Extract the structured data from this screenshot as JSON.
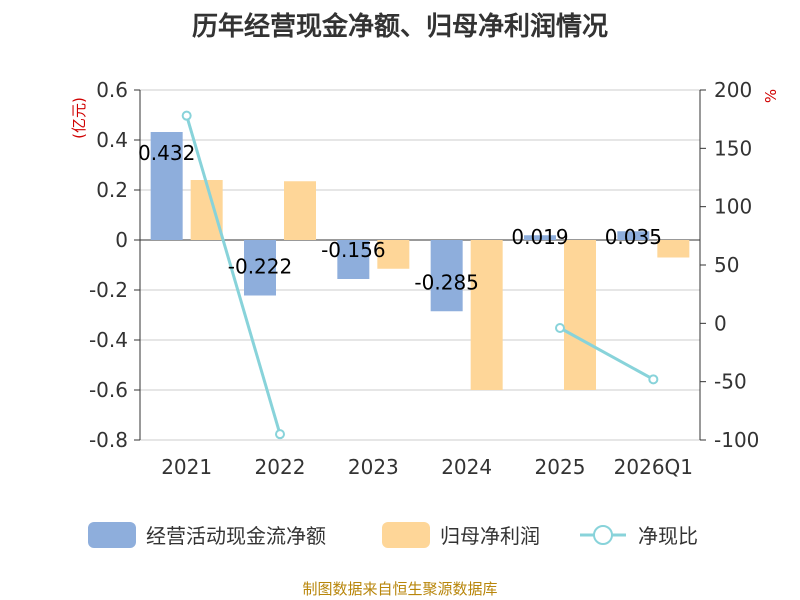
{
  "chart_data": {
    "type": "bar",
    "title": "历年经营现金净额、归母净利润情况",
    "categories": [
      "2021",
      "2022",
      "2023",
      "2024",
      "2025",
      "2026Q1"
    ],
    "y_left": {
      "unit": "(亿元)",
      "min": -0.8,
      "max": 0.6,
      "ticks": [
        -0.8,
        -0.6,
        -0.4,
        -0.2,
        0,
        0.2,
        0.4,
        0.6
      ]
    },
    "y_right": {
      "unit": "%",
      "min": -100,
      "max": 200,
      "ticks": [
        -100,
        -50,
        0,
        50,
        100,
        150,
        200
      ]
    },
    "series": [
      {
        "name": "经营活动现金流净额",
        "kind": "bar",
        "axis": "left",
        "color": "#8eaedc",
        "values": [
          0.432,
          -0.222,
          -0.156,
          -0.285,
          0.019,
          0.035
        ],
        "labels": [
          "0.432",
          "-0.222",
          "-0.156",
          "-0.285",
          "0.019",
          "0.035"
        ]
      },
      {
        "name": "归母净利润",
        "kind": "bar",
        "axis": "left",
        "color": "#fed698",
        "values": [
          0.24,
          0.235,
          -0.115,
          -0.6,
          -0.6,
          -0.07
        ]
      },
      {
        "name": "净现比",
        "kind": "line",
        "axis": "right",
        "color": "#88d3da",
        "values": [
          178,
          -95,
          null,
          null,
          -4,
          -48
        ]
      }
    ],
    "grid": true,
    "legend_position": "bottom"
  },
  "footer": {
    "source": "制图数据来自恒生聚源数据库"
  }
}
